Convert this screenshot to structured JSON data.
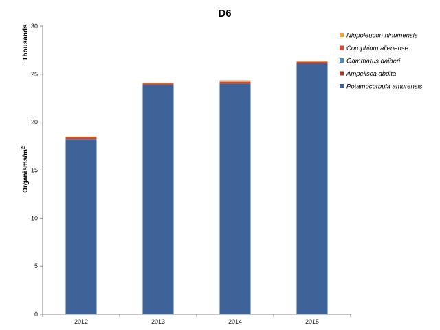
{
  "chart_data": {
    "type": "bar",
    "stacked": true,
    "title": "D6",
    "ylabel": "Organisms/m",
    "ylabel_superscript": "2",
    "yunit_label": "Thousands",
    "ylim": [
      0,
      30
    ],
    "yticks": [
      0,
      5,
      10,
      15,
      20,
      25,
      30
    ],
    "categories": [
      "2012",
      "2013",
      "2014",
      "2015"
    ],
    "series": [
      {
        "name": "Potamocorbula amurensis",
        "color": "#3d6399",
        "values": [
          18.2,
          23.9,
          24.0,
          26.1
        ]
      },
      {
        "name": "Ampelisca abdita",
        "color": "#a33a2a",
        "values": [
          0.03,
          0.03,
          0.05,
          0.03
        ]
      },
      {
        "name": "Gammarus daiberi",
        "color": "#4a8ac4",
        "values": [
          0.02,
          0.02,
          0.02,
          0.02
        ]
      },
      {
        "name": "Corophium alienense",
        "color": "#d4483a",
        "values": [
          0.15,
          0.1,
          0.15,
          0.15
        ]
      },
      {
        "name": "Nippoleucon hinumensis",
        "color": "#f0a040",
        "values": [
          0.05,
          0.05,
          0.05,
          0.05
        ]
      }
    ],
    "legend_position": "top-right",
    "grid": false
  }
}
